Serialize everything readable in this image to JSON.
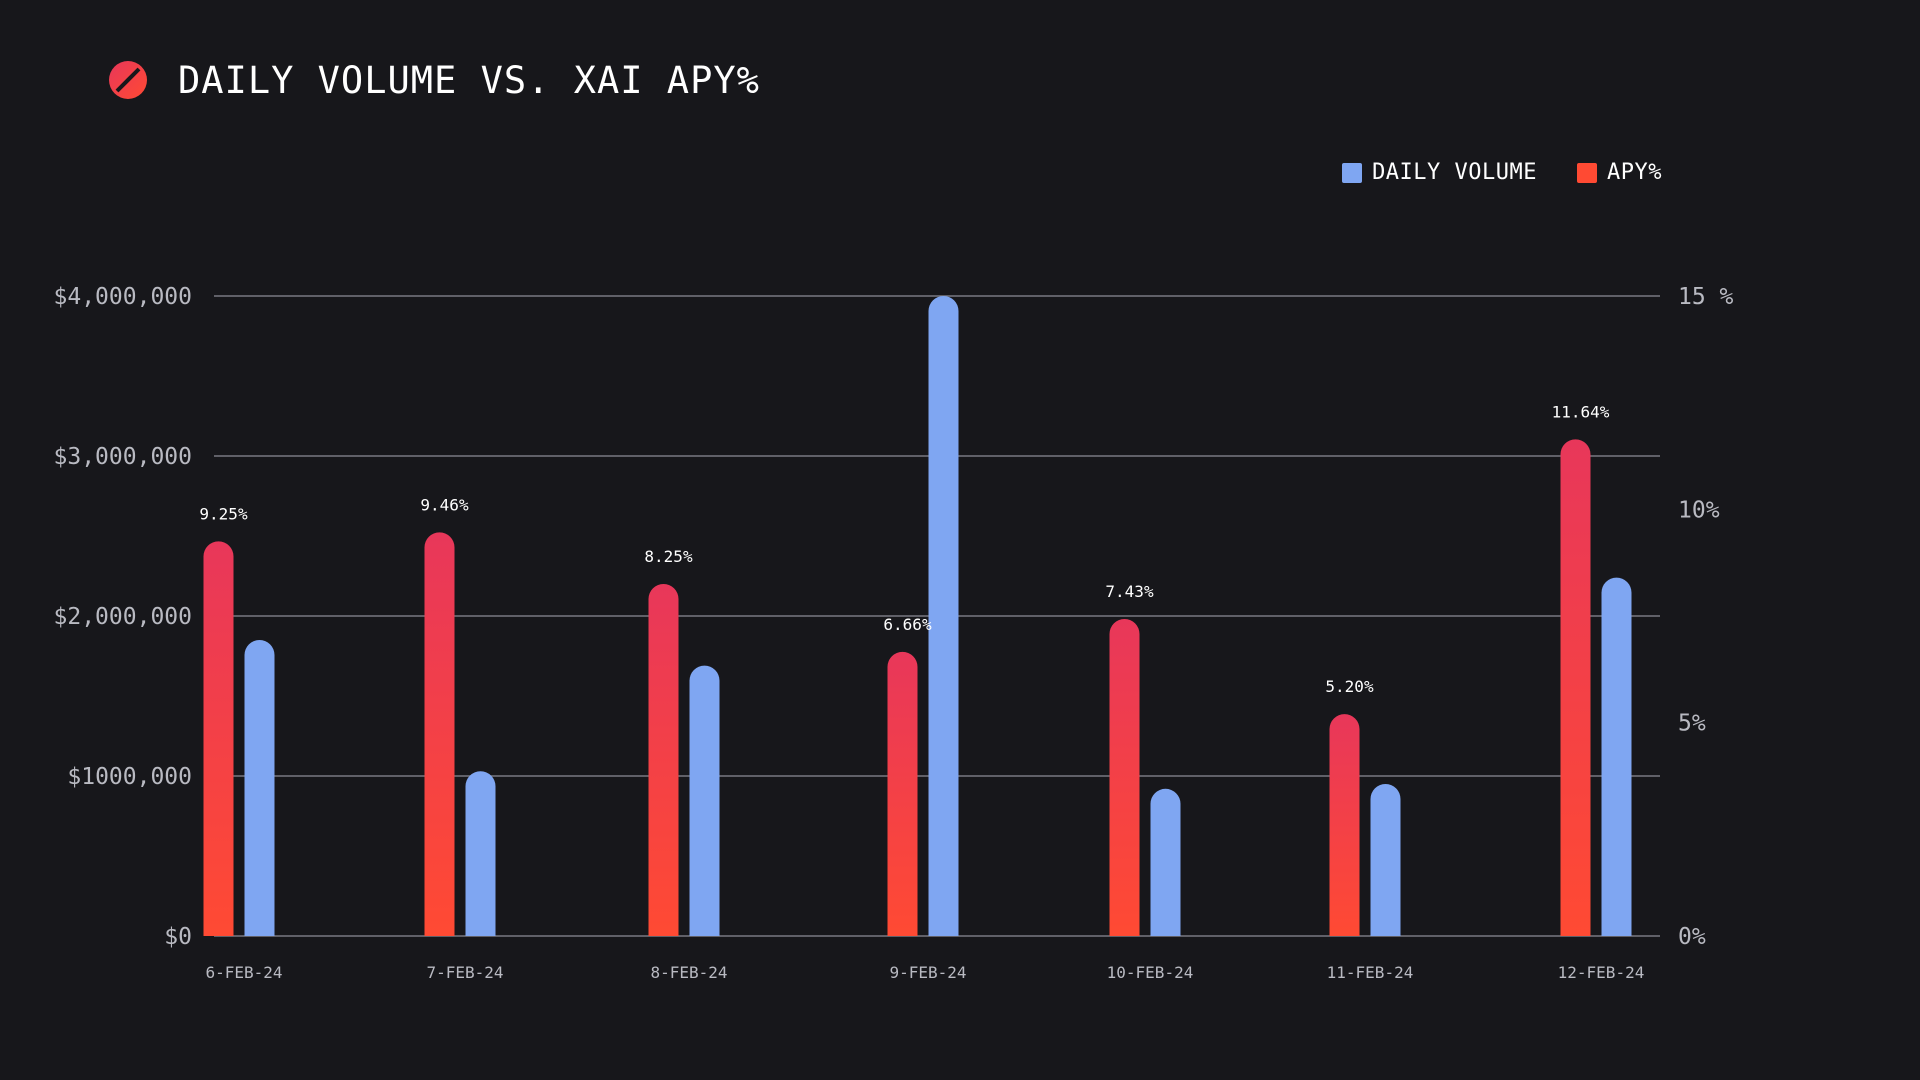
{
  "header": {
    "title": "DAILY VOLUME VS. XAI APY%",
    "logo_icon": "slashed-circle-icon"
  },
  "colors": {
    "background": "#17171b",
    "volume": "#7fa6f2",
    "apy_top": "#e8375a",
    "apy_bottom": "#ff4a33",
    "grid": "#8a8b93"
  },
  "chart_data": {
    "type": "bar",
    "title": "DAILY VOLUME VS. XAI APY%",
    "categories": [
      "6-FEB-24",
      "7-FEB-24",
      "8-FEB-24",
      "9-FEB-24",
      "10-FEB-24",
      "11-FEB-24",
      "12-FEB-24"
    ],
    "series": [
      {
        "name": "APY%",
        "axis": "right",
        "values": [
          9.25,
          9.46,
          8.25,
          6.66,
          7.43,
          5.2,
          11.64
        ],
        "data_labels": [
          "9.25%",
          "9.46%",
          "8.25%",
          "6.66%",
          "7.43%",
          "5.20%",
          "11.64%"
        ]
      },
      {
        "name": "DAILY VOLUME",
        "axis": "left",
        "values": [
          1850000,
          1030000,
          1690000,
          4000000,
          920000,
          950000,
          2240000
        ]
      }
    ],
    "y_left": {
      "ylim": [
        0,
        4000000
      ],
      "ticks": [
        0,
        1000000,
        2000000,
        3000000,
        4000000
      ],
      "tick_labels": [
        "$0",
        "$1000,000",
        "$2,000,000",
        "$3,000,000",
        "$4,000,000"
      ]
    },
    "y_right": {
      "ylim": [
        0,
        15
      ],
      "ticks": [
        0,
        5,
        10,
        15
      ],
      "tick_labels": [
        "0%",
        "5%",
        "10%",
        "15 %"
      ]
    },
    "legend": {
      "position": "top-right",
      "entries": [
        "DAILY VOLUME",
        "APY%"
      ]
    },
    "grid": true,
    "xlabel": "",
    "ylabel": ""
  }
}
